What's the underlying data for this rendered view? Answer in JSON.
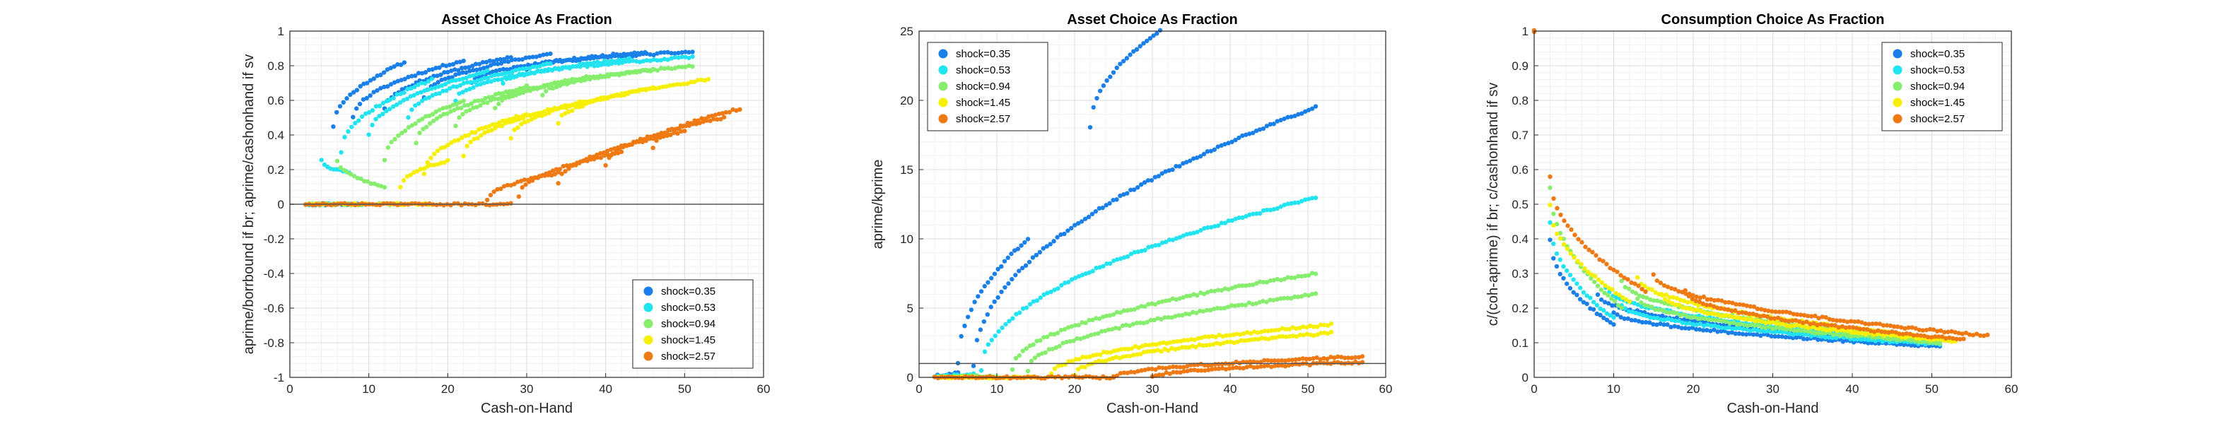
{
  "chart_data": [
    {
      "type": "scatter",
      "title": "Asset Choice As Fraction",
      "xlabel": "Cash-on-Hand",
      "ylabel": "aprime/borrbound if br; aprime/cashonhand if sv",
      "xlim": [
        0,
        60
      ],
      "ylim": [
        -1,
        1
      ],
      "xticks": [
        0,
        10,
        20,
        30,
        40,
        50,
        60
      ],
      "yticks": [
        -1,
        -0.8,
        -0.6,
        -0.4,
        -0.2,
        0,
        0.2,
        0.4,
        0.6,
        0.8,
        1
      ],
      "ytick_labels": [
        "-1",
        "-0.8",
        "-0.6",
        "-0.4",
        "-0.2",
        "0",
        "0.2",
        "0.4",
        "0.6",
        "0.8",
        "1"
      ],
      "grid": true,
      "reference_line_y": 0,
      "legend_position": "bottom-right",
      "series": [
        {
          "name": "shock=0.35",
          "color": "#1a7fe8",
          "curves": [
            {
              "x0": 2,
              "x1": 7,
              "y0": 0,
              "y1": 0
            },
            {
              "x0": 5.5,
              "x1": 14.5,
              "y0": 0.45,
              "y1": 0.82
            },
            {
              "x0": 8,
              "x1": 22,
              "y0": 0.5,
              "y1": 0.83
            },
            {
              "x0": 12,
              "x1": 28,
              "y0": 0.55,
              "y1": 0.85
            },
            {
              "x0": 17,
              "x1": 33,
              "y0": 0.62,
              "y1": 0.87
            },
            {
              "x0": 23,
              "x1": 45,
              "y0": 0.7,
              "y1": 0.88
            },
            {
              "x0": 30,
              "x1": 51,
              "y0": 0.78,
              "y1": 0.88
            }
          ]
        },
        {
          "name": "shock=0.53",
          "color": "#22e3f0",
          "curves": [
            {
              "x0": 2,
              "x1": 9,
              "y0": 0,
              "y1": 0
            },
            {
              "x0": 4,
              "x1": 7.5,
              "y0": 0.25,
              "y1": 0.18
            },
            {
              "x0": 6.5,
              "x1": 18,
              "y0": 0.3,
              "y1": 0.72
            },
            {
              "x0": 10,
              "x1": 25,
              "y0": 0.4,
              "y1": 0.77
            },
            {
              "x0": 15,
              "x1": 33,
              "y0": 0.5,
              "y1": 0.81
            },
            {
              "x0": 21,
              "x1": 43,
              "y0": 0.6,
              "y1": 0.84
            },
            {
              "x0": 27,
              "x1": 51,
              "y0": 0.7,
              "y1": 0.85
            }
          ]
        },
        {
          "name": "shock=0.94",
          "color": "#86ee6c",
          "curves": [
            {
              "x0": 2,
              "x1": 14,
              "y0": 0,
              "y1": 0
            },
            {
              "x0": 6,
              "x1": 12,
              "y0": 0.25,
              "y1": 0.1
            },
            {
              "x0": 12,
              "x1": 22,
              "y0": 0.25,
              "y1": 0.6
            },
            {
              "x0": 16,
              "x1": 30,
              "y0": 0.35,
              "y1": 0.68
            },
            {
              "x0": 21,
              "x1": 38,
              "y0": 0.45,
              "y1": 0.74
            },
            {
              "x0": 26,
              "x1": 46,
              "y0": 0.55,
              "y1": 0.78
            },
            {
              "x0": 32,
              "x1": 51,
              "y0": 0.63,
              "y1": 0.8
            }
          ]
        },
        {
          "name": "shock=1.45",
          "color": "#f6f000",
          "curves": [
            {
              "x0": 2,
              "x1": 18,
              "y0": 0,
              "y1": 0
            },
            {
              "x0": 14,
              "x1": 20,
              "y0": 0.1,
              "y1": 0.25
            },
            {
              "x0": 17,
              "x1": 30,
              "y0": 0.18,
              "y1": 0.52
            },
            {
              "x0": 22,
              "x1": 38,
              "y0": 0.28,
              "y1": 0.6
            },
            {
              "x0": 28,
              "x1": 46,
              "y0": 0.38,
              "y1": 0.67
            },
            {
              "x0": 34,
              "x1": 53,
              "y0": 0.47,
              "y1": 0.72
            }
          ]
        },
        {
          "name": "shock=2.57",
          "color": "#ef7a14",
          "curves": [
            {
              "x0": 2,
              "x1": 28,
              "y0": 0,
              "y1": 0
            },
            {
              "x0": 25,
              "x1": 34,
              "y0": 0.02,
              "y1": 0.18
            },
            {
              "x0": 29,
              "x1": 42,
              "y0": 0.05,
              "y1": 0.3
            },
            {
              "x0": 34,
              "x1": 50,
              "y0": 0.12,
              "y1": 0.42
            },
            {
              "x0": 40,
              "x1": 55,
              "y0": 0.22,
              "y1": 0.5
            },
            {
              "x0": 46,
              "x1": 57,
              "y0": 0.32,
              "y1": 0.55
            }
          ]
        }
      ]
    },
    {
      "type": "scatter",
      "title": "Asset Choice As Fraction",
      "xlabel": "Cash-on-Hand",
      "ylabel": "aprime/kprime",
      "xlim": [
        0,
        60
      ],
      "ylim": [
        0,
        25
      ],
      "xticks": [
        0,
        10,
        20,
        30,
        40,
        50,
        60
      ],
      "yticks": [
        0,
        5,
        10,
        15,
        20,
        25
      ],
      "ytick_labels": [
        "0",
        "5",
        "10",
        "15",
        "20",
        "25"
      ],
      "grid": true,
      "reference_line_y": 1,
      "legend_position": "top-left",
      "series": [
        {
          "name": "shock=0.35",
          "color": "#1a7fe8",
          "curves": [
            {
              "x0": 2,
              "x1": 5,
              "y0": 0,
              "y1": 0.3
            },
            {
              "x0": 5,
              "x1": 14,
              "y0": 1,
              "y1": 10
            },
            {
              "x0": 22,
              "x1": 31,
              "y0": 18,
              "y1": 25
            },
            {
              "x0": 7,
              "x1": 51,
              "y0": 0.8,
              "y1": 19.5
            }
          ]
        },
        {
          "name": "shock=0.53",
          "color": "#22e3f0",
          "curves": [
            {
              "x0": 2,
              "x1": 7,
              "y0": 0,
              "y1": 0.2
            },
            {
              "x0": 8,
              "x1": 51,
              "y0": 0.5,
              "y1": 13
            }
          ]
        },
        {
          "name": "shock=0.94",
          "color": "#86ee6c",
          "curves": [
            {
              "x0": 2,
              "x1": 10,
              "y0": 0,
              "y1": 0.1
            },
            {
              "x0": 12,
              "x1": 51,
              "y0": 0.6,
              "y1": 7.5
            },
            {
              "x0": 14,
              "x1": 51,
              "y0": 0.5,
              "y1": 6
            }
          ]
        },
        {
          "name": "shock=1.45",
          "color": "#f6f000",
          "curves": [
            {
              "x0": 2,
              "x1": 15,
              "y0": 0,
              "y1": 0
            },
            {
              "x0": 17,
              "x1": 53,
              "y0": 0.2,
              "y1": 3.8
            },
            {
              "x0": 20,
              "x1": 53,
              "y0": 0.2,
              "y1": 3.2
            }
          ]
        },
        {
          "name": "shock=2.57",
          "color": "#ef7a14",
          "curves": [
            {
              "x0": 2,
              "x1": 25,
              "y0": 0,
              "y1": 0
            },
            {
              "x0": 25,
              "x1": 57,
              "y0": 0,
              "y1": 1.5
            },
            {
              "x0": 30,
              "x1": 57,
              "y0": 0,
              "y1": 1.1
            }
          ]
        }
      ]
    },
    {
      "type": "scatter",
      "title": "Consumption Choice As Fraction",
      "xlabel": "Cash-on-Hand",
      "ylabel": "c/(coh-aprime) if br; c/cashonhand if sv",
      "xlim": [
        0,
        60
      ],
      "ylim": [
        0,
        1
      ],
      "xticks": [
        0,
        10,
        20,
        30,
        40,
        50,
        60
      ],
      "yticks": [
        0,
        0.1,
        0.2,
        0.3,
        0.4,
        0.5,
        0.6,
        0.7,
        0.8,
        0.9,
        1
      ],
      "ytick_labels": [
        "0",
        "0.1",
        "0.2",
        "0.3",
        "0.4",
        "0.5",
        "0.6",
        "0.7",
        "0.8",
        "0.9",
        "1"
      ],
      "grid": true,
      "legend_position": "top-right",
      "series": [
        {
          "name": "shock=0.35",
          "color": "#1a7fe8",
          "curves": [
            {
              "x0": 2,
              "x1": 10,
              "y0": 0.4,
              "y1": 0.15
            },
            {
              "x0": 8,
              "x1": 50,
              "y0": 0.24,
              "y1": 0.095
            },
            {
              "x0": 10,
              "x1": 51,
              "y0": 0.19,
              "y1": 0.09
            }
          ]
        },
        {
          "name": "shock=0.53",
          "color": "#22e3f0",
          "curves": [
            {
              "x0": 2,
              "x1": 10,
              "y0": 0.45,
              "y1": 0.17
            },
            {
              "x0": 9,
              "x1": 51,
              "y0": 0.26,
              "y1": 0.1
            },
            {
              "x0": 11,
              "x1": 51,
              "y0": 0.21,
              "y1": 0.095
            }
          ]
        },
        {
          "name": "shock=0.94",
          "color": "#86ee6c",
          "curves": [
            {
              "x0": 2,
              "x1": 11,
              "y0": 0.55,
              "y1": 0.2
            },
            {
              "x0": 11,
              "x1": 51,
              "y0": 0.28,
              "y1": 0.105
            },
            {
              "x0": 13,
              "x1": 51,
              "y0": 0.23,
              "y1": 0.1
            }
          ]
        },
        {
          "name": "shock=1.45",
          "color": "#f6f000",
          "curves": [
            {
              "x0": 2,
              "x1": 12,
              "y0": 0.5,
              "y1": 0.22
            },
            {
              "x0": 13,
              "x1": 53,
              "y0": 0.29,
              "y1": 0.11
            },
            {
              "x0": 16,
              "x1": 53,
              "y0": 0.24,
              "y1": 0.105
            }
          ]
        },
        {
          "name": "shock=2.57",
          "color": "#ef7a14",
          "curves": [
            {
              "x0": 0,
              "x1": 0,
              "y0": 1,
              "y1": 1
            },
            {
              "x0": 2,
              "x1": 14,
              "y0": 0.58,
              "y1": 0.25
            },
            {
              "x0": 15,
              "x1": 57,
              "y0": 0.3,
              "y1": 0.12
            },
            {
              "x0": 19,
              "x1": 54,
              "y0": 0.25,
              "y1": 0.11
            }
          ]
        }
      ]
    }
  ]
}
